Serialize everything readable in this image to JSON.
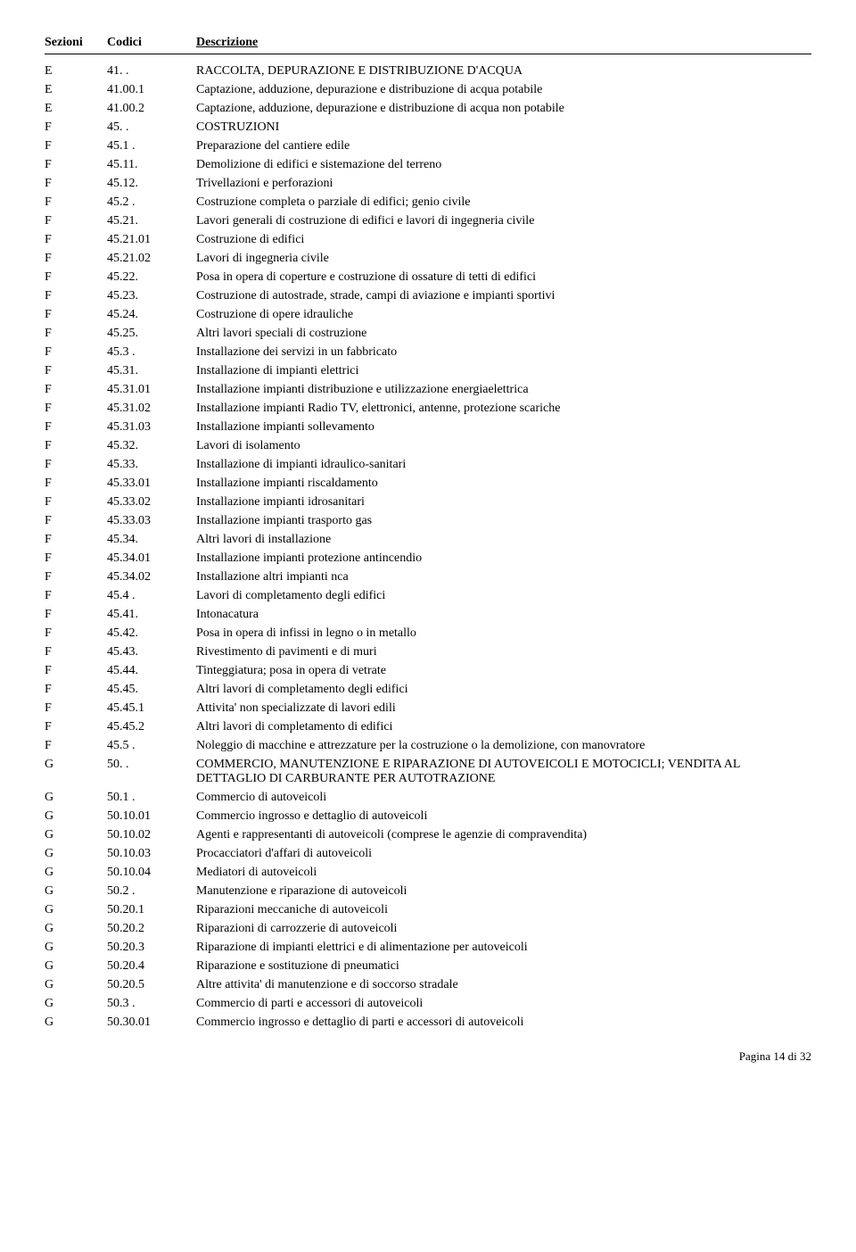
{
  "header": {
    "sezioni": "Sezioni",
    "codici": "Codici",
    "descrizione": "Descrizione"
  },
  "rows": [
    {
      "s": "E",
      "c": "41. .",
      "d": "RACCOLTA, DEPURAZIONE E DISTRIBUZIONE D'ACQUA"
    },
    {
      "s": "E",
      "c": "41.00.1",
      "d": "Captazione, adduzione, depurazione e distribuzione di acqua potabile"
    },
    {
      "s": "E",
      "c": "41.00.2",
      "d": "Captazione, adduzione, depurazione e distribuzione di acqua non potabile"
    },
    {
      "s": "F",
      "c": "45. .",
      "d": "COSTRUZIONI"
    },
    {
      "s": "F",
      "c": "45.1 .",
      "d": "Preparazione del cantiere edile"
    },
    {
      "s": "F",
      "c": "45.11.",
      "d": "Demolizione di edifici e sistemazione del terreno"
    },
    {
      "s": "F",
      "c": "45.12.",
      "d": "Trivellazioni e perforazioni"
    },
    {
      "s": "F",
      "c": "45.2 .",
      "d": "Costruzione completa o parziale di edifici; genio civile"
    },
    {
      "s": "F",
      "c": "45.21.",
      "d": "Lavori generali di costruzione di edifici e lavori di ingegneria civile"
    },
    {
      "s": "F",
      "c": "45.21.01",
      "d": "Costruzione di edifici"
    },
    {
      "s": "F",
      "c": "45.21.02",
      "d": "Lavori di ingegneria civile"
    },
    {
      "s": "F",
      "c": "45.22.",
      "d": "Posa in opera di coperture e costruzione di ossature di tetti di edifici"
    },
    {
      "s": "F",
      "c": "45.23.",
      "d": "Costruzione di autostrade, strade, campi di aviazione e impianti sportivi"
    },
    {
      "s": "F",
      "c": "45.24.",
      "d": "Costruzione di opere idrauliche"
    },
    {
      "s": "F",
      "c": "45.25.",
      "d": "Altri lavori speciali di costruzione"
    },
    {
      "s": "F",
      "c": "45.3 .",
      "d": "Installazione dei servizi in un fabbricato"
    },
    {
      "s": "F",
      "c": "45.31.",
      "d": "Installazione di impianti elettrici"
    },
    {
      "s": "F",
      "c": "45.31.01",
      "d": "Installazione impianti distribuzione e utilizzazione energiaelettrica"
    },
    {
      "s": "F",
      "c": "45.31.02",
      "d": "Installazione impianti Radio TV, elettronici, antenne, protezione scariche"
    },
    {
      "s": "F",
      "c": "45.31.03",
      "d": "Installazione impianti sollevamento"
    },
    {
      "s": "F",
      "c": "45.32.",
      "d": "Lavori di isolamento"
    },
    {
      "s": "F",
      "c": "45.33.",
      "d": "Installazione di impianti idraulico-sanitari"
    },
    {
      "s": "F",
      "c": "45.33.01",
      "d": "Installazione impianti riscaldamento"
    },
    {
      "s": "F",
      "c": "45.33.02",
      "d": "Installazione impianti idrosanitari"
    },
    {
      "s": "F",
      "c": "45.33.03",
      "d": "Installazione impianti trasporto gas"
    },
    {
      "s": "F",
      "c": "45.34.",
      "d": "Altri lavori di installazione"
    },
    {
      "s": "F",
      "c": "45.34.01",
      "d": "Installazione impianti protezione antincendio"
    },
    {
      "s": "F",
      "c": "45.34.02",
      "d": "Installazione altri impianti nca"
    },
    {
      "s": "F",
      "c": "45.4 .",
      "d": "Lavori di completamento degli edifici"
    },
    {
      "s": "F",
      "c": "45.41.",
      "d": "Intonacatura"
    },
    {
      "s": "F",
      "c": "45.42.",
      "d": "Posa in opera di infissi in legno o in metallo"
    },
    {
      "s": "F",
      "c": "45.43.",
      "d": "Rivestimento di pavimenti e di muri"
    },
    {
      "s": "F",
      "c": "45.44.",
      "d": "Tinteggiatura;  posa in opera di vetrate"
    },
    {
      "s": "F",
      "c": "45.45.",
      "d": "Altri lavori di completamento degli edifici"
    },
    {
      "s": "F",
      "c": "45.45.1",
      "d": "Attivita' non specializzate di lavori edili"
    },
    {
      "s": "F",
      "c": "45.45.2",
      "d": "Altri lavori di completamento di edifici"
    },
    {
      "s": "F",
      "c": "45.5 .",
      "d": "Noleggio di macchine e attrezzature per la costruzione o la demolizione, con manovratore"
    },
    {
      "s": "G",
      "c": "50. .",
      "d": "COMMERCIO, MANUTENZIONE E RIPARAZIONE DI AUTOVEICOLI E MOTOCICLI; VENDITA AL DETTAGLIO DI CARBURANTE PER AUTOTRAZIONE"
    },
    {
      "s": "G",
      "c": "50.1 .",
      "d": "Commercio di autoveicoli"
    },
    {
      "s": "G",
      "c": "50.10.01",
      "d": "Commercio ingrosso e dettaglio di autoveicoli"
    },
    {
      "s": "G",
      "c": "50.10.02",
      "d": "Agenti e rappresentanti di autoveicoli (comprese le agenzie di compravendita)"
    },
    {
      "s": "G",
      "c": "50.10.03",
      "d": "Procacciatori d'affari di autoveicoli"
    },
    {
      "s": "G",
      "c": "50.10.04",
      "d": "Mediatori di autoveicoli"
    },
    {
      "s": "G",
      "c": "50.2 .",
      "d": "Manutenzione e riparazione di autoveicoli"
    },
    {
      "s": "G",
      "c": "50.20.1",
      "d": "Riparazioni meccaniche di autoveicoli"
    },
    {
      "s": "G",
      "c": "50.20.2",
      "d": "Riparazioni di carrozzerie di autoveicoli"
    },
    {
      "s": "G",
      "c": "50.20.3",
      "d": "Riparazione di impianti elettrici e di alimentazione per autoveicoli"
    },
    {
      "s": "G",
      "c": "50.20.4",
      "d": "Riparazione e sostituzione di pneumatici"
    },
    {
      "s": "G",
      "c": "50.20.5",
      "d": "Altre attivita' di manutenzione e di soccorso stradale"
    },
    {
      "s": "G",
      "c": "50.3 .",
      "d": "Commercio di parti e accessori di autoveicoli"
    },
    {
      "s": "G",
      "c": "50.30.01",
      "d": "Commercio ingrosso e dettaglio di parti e accessori di autoveicoli"
    }
  ],
  "footer": {
    "label_prefix": "Pagina ",
    "page_current": "14",
    "label_middle": " di  ",
    "page_total": "32"
  }
}
